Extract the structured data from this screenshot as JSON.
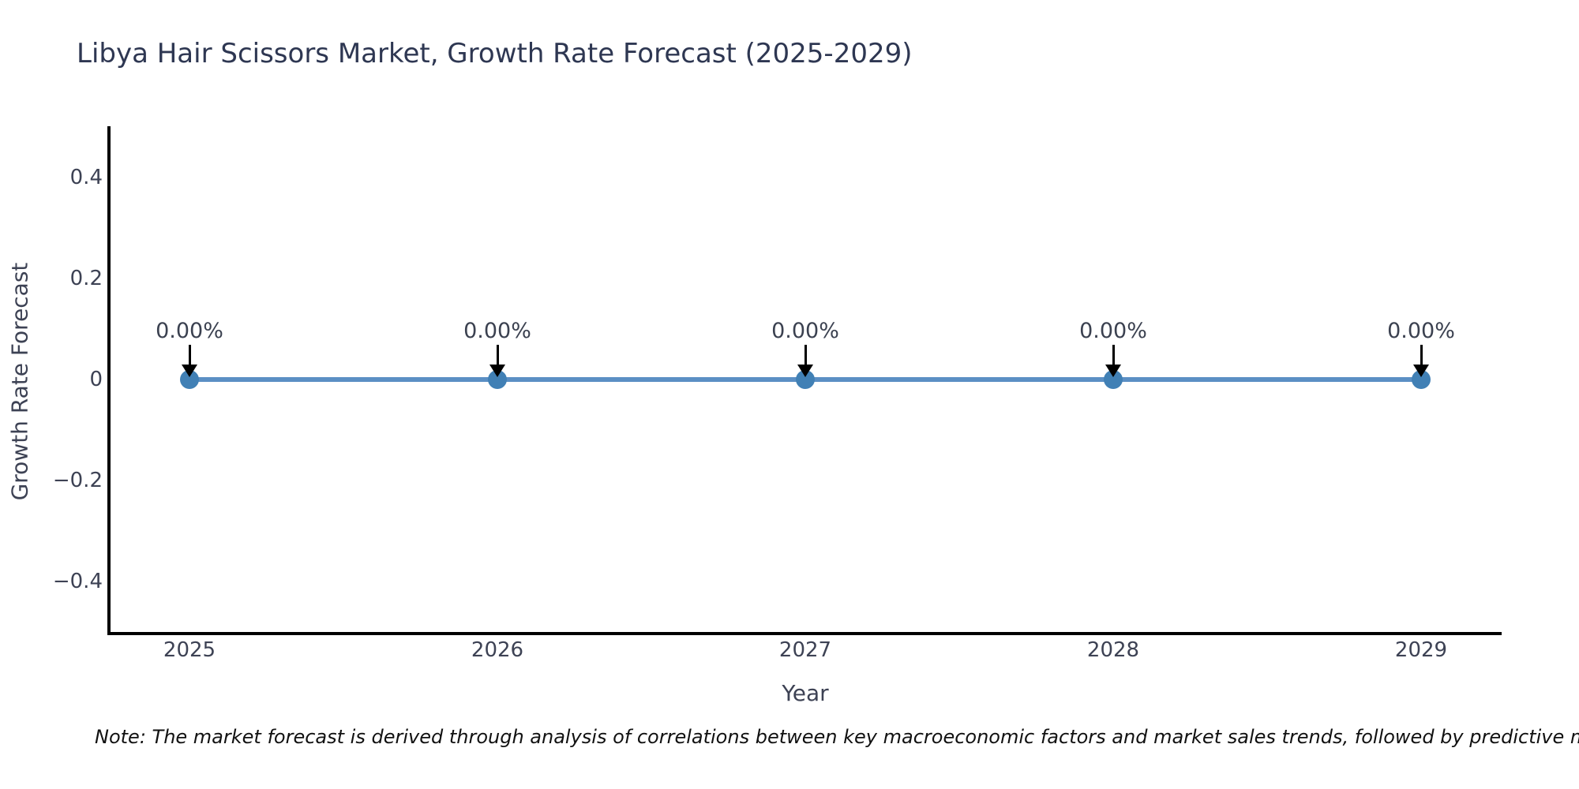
{
  "title": "Libya Hair Scissors Market, Growth Rate Forecast (2025-2029)",
  "note": "Note: The market forecast is derived through analysis of correlations between key macroeconomic factors and market sales trends, followed by predictive modeling to project future sa",
  "chart_data": {
    "type": "line",
    "title": "Libya Hair Scissors Market, Growth Rate Forecast (2025-2029)",
    "x": [
      2025,
      2026,
      2027,
      2028,
      2029
    ],
    "categories": [
      "2025",
      "2026",
      "2027",
      "2028",
      "2029"
    ],
    "series": [
      {
        "name": "Growth Rate Forecast",
        "values": [
          0,
          0,
          0,
          0,
          0
        ]
      }
    ],
    "point_labels": [
      "0.00%",
      "0.00%",
      "0.00%",
      "0.00%",
      "0.00%"
    ],
    "xlabel": "Year",
    "ylabel": "Growth Rate Forecast",
    "ylim": [
      -0.5,
      0.5
    ],
    "yticks": [
      0.4,
      0.2,
      0,
      -0.2,
      -0.4
    ],
    "ytick_labels": [
      "0.4",
      "0.2",
      "0",
      "−0.2",
      "−0.4"
    ],
    "grid": false,
    "legend_position": "none",
    "line_color": "#5b8fc4",
    "marker_color": "#4180b5",
    "annotation_arrow_color": "#000000",
    "axis_color": "#000000",
    "title_color": "#2e3752",
    "tick_label_color": "#3d4254"
  }
}
